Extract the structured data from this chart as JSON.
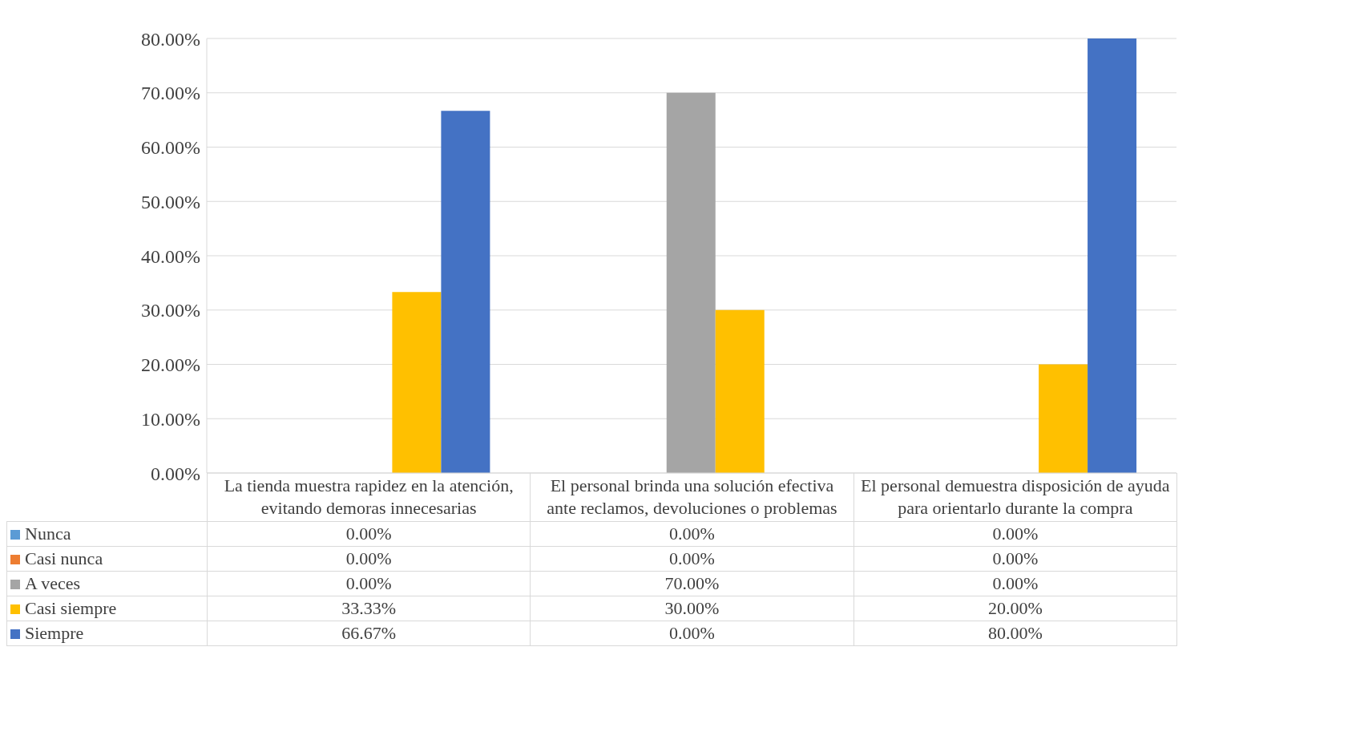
{
  "chart_data": {
    "type": "bar",
    "categories": [
      "La tienda muestra rapidez en la atención, evitando demoras innecesarias",
      "El personal brinda una solución efectiva ante reclamos, devoluciones o problemas",
      "El personal demuestra disposición de ayuda para orientarlo durante la compra"
    ],
    "series": [
      {
        "name": "Nunca",
        "color": "#5b9bd5",
        "values": [
          0,
          0,
          0
        ],
        "value_labels": [
          "0.00%",
          "0.00%",
          "0.00%"
        ]
      },
      {
        "name": "Casi nunca",
        "color": "#ed7d31",
        "values": [
          0,
          0,
          0
        ],
        "value_labels": [
          "0.00%",
          "0.00%",
          "0.00%"
        ]
      },
      {
        "name": "A veces",
        "color": "#a5a5a5",
        "values": [
          0,
          70,
          0
        ],
        "value_labels": [
          "0.00%",
          "70.00%",
          "0.00%"
        ]
      },
      {
        "name": "Casi siempre",
        "color": "#ffc000",
        "values": [
          33.33,
          30,
          20
        ],
        "value_labels": [
          "33.33%",
          "30.00%",
          "20.00%"
        ]
      },
      {
        "name": "Siempre",
        "color": "#4472c4",
        "values": [
          66.67,
          0,
          80
        ],
        "value_labels": [
          "66.67%",
          "0.00%",
          "80.00%"
        ]
      }
    ],
    "ylim": [
      0,
      80
    ],
    "yticks": [
      {
        "value": 0,
        "label": "0.00%"
      },
      {
        "value": 10,
        "label": "10.00%"
      },
      {
        "value": 20,
        "label": "20.00%"
      },
      {
        "value": 30,
        "label": "30.00%"
      },
      {
        "value": 40,
        "label": "40.00%"
      },
      {
        "value": 50,
        "label": "50.00%"
      },
      {
        "value": 60,
        "label": "60.00%"
      },
      {
        "value": 70,
        "label": "70.00%"
      },
      {
        "value": 80,
        "label": "80.00%"
      }
    ],
    "grid": "y",
    "legend": "bottom"
  }
}
